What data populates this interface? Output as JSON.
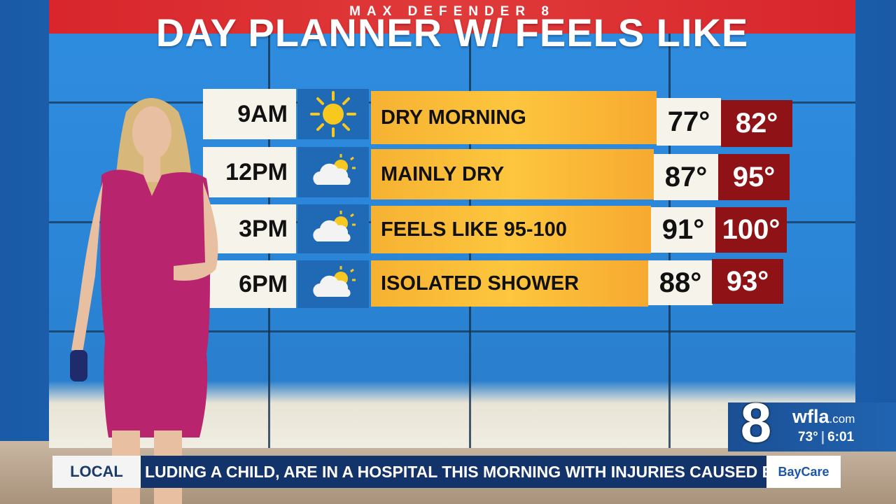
{
  "header": {
    "kicker": "MAX DEFENDER 8",
    "title": "DAY PLANNER W/ FEELS LIKE"
  },
  "table": {
    "rows": [
      [
        "9AM",
        "DRY MORNING",
        "77°",
        "82°"
      ],
      [
        "12PM",
        "MAINLY DRY",
        "87°",
        "95°"
      ],
      [
        "3PM",
        "FEELS LIKE 95-100",
        "91°",
        "100°"
      ],
      [
        "6PM",
        "ISOLATED SHOWER",
        "88°",
        "93°"
      ]
    ]
  },
  "bug": {
    "channel": "8",
    "site": "wfla",
    "domain": ".com",
    "temperature": "73°",
    "time": "6:01"
  },
  "ticker": {
    "label": "LOCAL",
    "text": "LUDING A CHILD, ARE IN A HOSPITAL THIS MORNING WITH INJURIES CAUSED BY A C",
    "sponsor": "BayCare"
  }
}
